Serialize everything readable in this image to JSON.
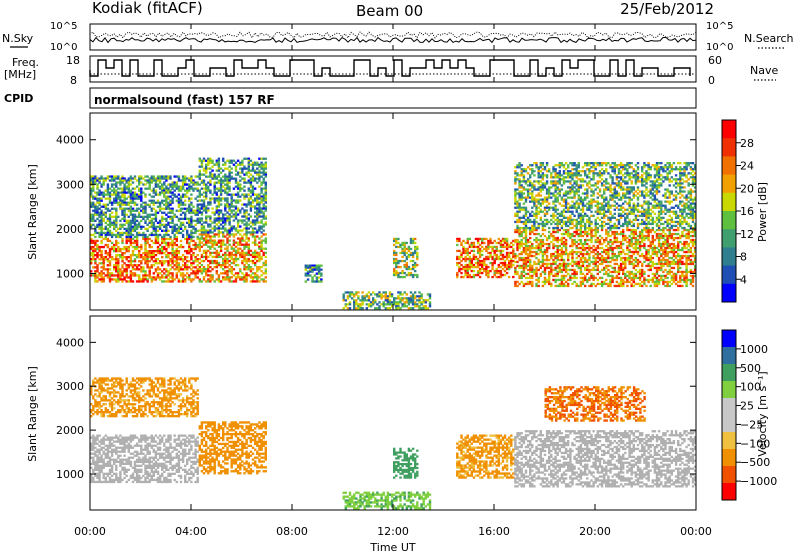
{
  "header": {
    "station": "Kodiak (fitACF)",
    "beam": "Beam 00",
    "date": "25/Feb/2012"
  },
  "top_panels": {
    "nsky_label": "N.Sky",
    "nsearch_label": "N.Search",
    "freq_label_1": "Freq.",
    "freq_label_2": "[MHz]",
    "nave_label": "Nave",
    "cpid_label": "CPID",
    "cpid_text": "normalsound (fast) 157 RF",
    "noise_ticks": [
      "10^5",
      "10^0"
    ],
    "freq_ticks": [
      "18",
      "8"
    ],
    "nave_ticks": [
      "60",
      "0"
    ]
  },
  "colors": {
    "power_scale": [
      "#0000ff",
      "#1f4fb4",
      "#2f7f8f",
      "#3f9f6f",
      "#5fbf3f",
      "#c8d800",
      "#f0a000",
      "#f07000",
      "#f03000",
      "#ff0000"
    ],
    "velocity_scale": [
      "#ff0000",
      "#f05000",
      "#f09000",
      "#f0c040",
      "#c8c8c8",
      "#c8c8c8",
      "#7fcf3f",
      "#3f9f5f",
      "#2f6f9f",
      "#0000ff"
    ],
    "ground_scatter": "#b0b0b0"
  },
  "chart_data": [
    {
      "type": "heatmap",
      "name": "power",
      "ylabel": "Slant Range [km]",
      "xlabel": "Time UT",
      "xlim": [
        "00:00",
        "24:00"
      ],
      "ylim": [
        180,
        4600
      ],
      "yticks": [
        1000,
        2000,
        3000,
        4000
      ],
      "xticks": [
        "00:00",
        "04:00",
        "08:00",
        "12:00",
        "16:00",
        "20:00",
        "00:00"
      ],
      "colorbar": {
        "label": "Power [dB]",
        "ticks": [
          "28",
          "24",
          "20",
          "16",
          "12",
          "8",
          "4"
        ],
        "range": [
          0,
          30
        ]
      },
      "regions": [
        {
          "t": [
            0.0,
            4.3
          ],
          "r": [
            800,
            1800
          ],
          "value": 22
        },
        {
          "t": [
            0.0,
            4.3
          ],
          "r": [
            1800,
            3200
          ],
          "value": 10
        },
        {
          "t": [
            4.3,
            7.0
          ],
          "r": [
            800,
            1900
          ],
          "value": 20
        },
        {
          "t": [
            4.3,
            7.0
          ],
          "r": [
            1900,
            3600
          ],
          "value": 10
        },
        {
          "t": [
            8.5,
            9.2
          ],
          "r": [
            800,
            1200
          ],
          "value": 9
        },
        {
          "t": [
            10.0,
            13.5
          ],
          "r": [
            200,
            600
          ],
          "value": 12
        },
        {
          "t": [
            12.0,
            13.0
          ],
          "r": [
            900,
            1800
          ],
          "value": 14
        },
        {
          "t": [
            14.5,
            16.8
          ],
          "r": [
            900,
            1800
          ],
          "value": 22
        },
        {
          "t": [
            16.8,
            24.0
          ],
          "r": [
            700,
            2000
          ],
          "value": 20
        },
        {
          "t": [
            16.8,
            24.0
          ],
          "r": [
            2000,
            3500
          ],
          "value": 12
        }
      ]
    },
    {
      "type": "heatmap",
      "name": "velocity",
      "ylabel": "Slant Range [km]",
      "xlabel": "Time UT",
      "xlim": [
        "00:00",
        "24:00"
      ],
      "ylim": [
        180,
        4600
      ],
      "yticks": [
        1000,
        2000,
        3000,
        4000
      ],
      "xticks": [
        "00:00",
        "04:00",
        "08:00",
        "12:00",
        "16:00",
        "20:00",
        "00:00"
      ],
      "colorbar": {
        "label": "Velocity [m s⁻¹]",
        "ticks": [
          "1000",
          "500",
          "100",
          "25",
          "−25",
          "−100",
          "−500",
          "−1000"
        ]
      },
      "regions": [
        {
          "t": [
            0.0,
            4.3
          ],
          "r": [
            800,
            1900
          ],
          "value": "ground"
        },
        {
          "t": [
            0.0,
            4.3
          ],
          "r": [
            2300,
            3200
          ],
          "value": -150
        },
        {
          "t": [
            4.3,
            7.0
          ],
          "r": [
            1000,
            2200
          ],
          "value": -300
        },
        {
          "t": [
            12.0,
            13.0
          ],
          "r": [
            900,
            1600
          ],
          "value": 200
        },
        {
          "t": [
            10.0,
            13.5
          ],
          "r": [
            200,
            600
          ],
          "value": 80
        },
        {
          "t": [
            14.5,
            16.8
          ],
          "r": [
            900,
            1900
          ],
          "value": -150
        },
        {
          "t": [
            16.8,
            24.0
          ],
          "r": [
            700,
            2000
          ],
          "value": "ground"
        },
        {
          "t": [
            18.0,
            22.0
          ],
          "r": [
            2200,
            3000
          ],
          "value": -500
        }
      ]
    }
  ]
}
